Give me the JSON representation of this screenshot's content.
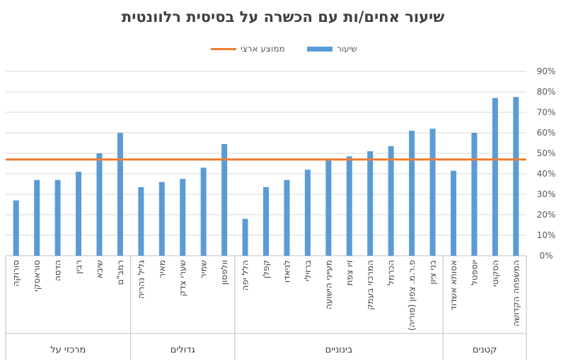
{
  "chart_data": {
    "type": "bar",
    "title": "שיעור אחים/ות עם הכשרה על בסיסית רלוונטית",
    "series": [
      {
        "name": "שיעור",
        "color": "#5b9bd5",
        "values": [
          27,
          37,
          37,
          41,
          50,
          60,
          33.5,
          36,
          37.5,
          43,
          54.5,
          18,
          33.5,
          37,
          42,
          46.5,
          48.5,
          51,
          53.5,
          61,
          62,
          41.5,
          60,
          77,
          77.5
        ]
      },
      {
        "name": "ממוצע ארצי",
        "color": "#ed7d31",
        "kind": "line",
        "value": 47
      }
    ],
    "categories": [
      "סורוקה",
      "סוראסקי",
      "הדסה",
      "רבין",
      "שיבא",
      "רמב\"ם",
      "גליל נהריה",
      "מאיר",
      "שערי צדק",
      "שמיר",
      "וולפסון",
      "הלל יפה",
      "קפלן",
      "לניאדו",
      "ברזילי",
      "מעייני הישועה",
      "זיו צפת",
      "המרכזי בעמק",
      "הכרמל",
      "פ.ר.מ. צפון (פוריה)",
      "בני ציון",
      "אסותא אשדוד",
      "יוספטל",
      "הסקוטי",
      "המשפחה הקדושה"
    ],
    "groups": [
      {
        "label": "מרכזי על",
        "count": 6
      },
      {
        "label": "גדולים",
        "count": 5
      },
      {
        "label": "בינוניים",
        "count": 10
      },
      {
        "label": "קטנים",
        "count": 4
      }
    ],
    "yaxis": {
      "ticks": [
        "0%",
        "10%",
        "20%",
        "30%",
        "40%",
        "50%",
        "60%",
        "70%",
        "80%",
        "90%"
      ],
      "ylim": [
        0,
        90
      ]
    },
    "grid": true,
    "legend": "top-center"
  }
}
